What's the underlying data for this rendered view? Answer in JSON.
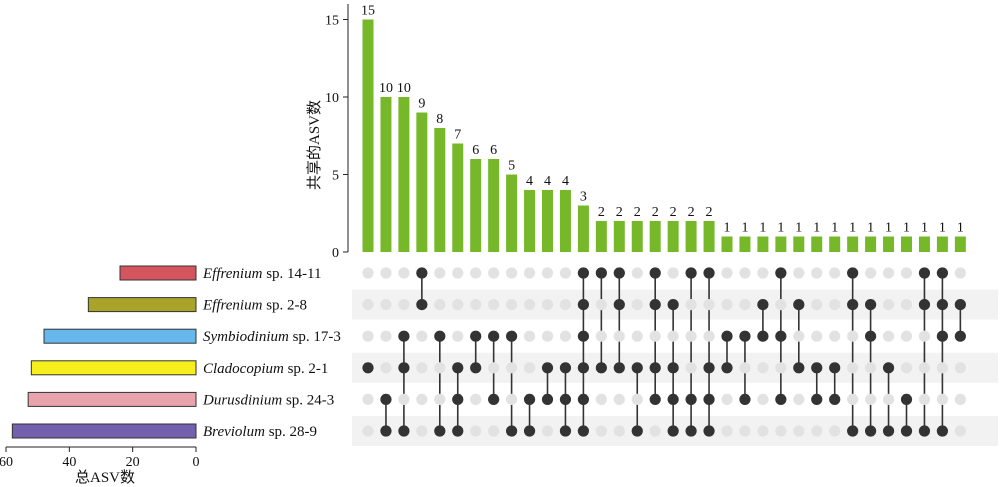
{
  "chart_data": {
    "type": "bar",
    "ylabel": "共享的ASV数",
    "ylim": [
      0,
      16
    ],
    "yticks": [
      0,
      5,
      10,
      15
    ],
    "values": [
      15,
      10,
      10,
      9,
      8,
      7,
      6,
      6,
      5,
      4,
      4,
      4,
      3,
      2,
      2,
      2,
      2,
      2,
      2,
      2,
      1,
      1,
      1,
      1,
      1,
      1,
      1,
      1,
      1,
      1,
      1,
      1,
      1,
      1
    ],
    "sets": [
      {
        "genus": "Effrenium",
        "suffix": " sp. 14-11",
        "total": 24,
        "color": "#d4555e"
      },
      {
        "genus": "Effrenium",
        "suffix": " sp. 2-8",
        "total": 34,
        "color": "#a9a32a"
      },
      {
        "genus": "Symbiodinium",
        "suffix": " sp. 17-3",
        "total": 48,
        "color": "#66b8ec"
      },
      {
        "genus": "Cladocopium",
        "suffix": " sp. 2-1",
        "total": 52,
        "color": "#f7ef1c"
      },
      {
        "genus": "Durusdinium",
        "suffix": " sp. 24-3",
        "total": 53,
        "color": "#e9a3ad"
      },
      {
        "genus": "Breviolum",
        "suffix": " sp. 28-9",
        "total": 58,
        "color": "#7361ad"
      }
    ],
    "intersections": [
      [
        3
      ],
      [
        4,
        5
      ],
      [
        2,
        3,
        5
      ],
      [
        0,
        1
      ],
      [
        2,
        5
      ],
      [
        3,
        4,
        5
      ],
      [
        2,
        3
      ],
      [
        2,
        4
      ],
      [
        2,
        5
      ],
      [
        4,
        5
      ],
      [
        3,
        4
      ],
      [
        3,
        4,
        5
      ],
      [
        0,
        1,
        2,
        3,
        4,
        5
      ],
      [
        0,
        3
      ],
      [
        0,
        1,
        3
      ],
      [
        3,
        5
      ],
      [
        0,
        1,
        3,
        4
      ],
      [
        1,
        3,
        4,
        5
      ],
      [
        0,
        4,
        5
      ],
      [
        0,
        3,
        4,
        5
      ],
      [
        2,
        3
      ],
      [
        2,
        4
      ],
      [
        1,
        2
      ],
      [
        0,
        2,
        4
      ],
      [
        1,
        3
      ],
      [
        3,
        4
      ],
      [
        3,
        4
      ],
      [
        0,
        1,
        5
      ],
      [
        1,
        2,
        5
      ],
      [
        3,
        5
      ],
      [
        4,
        5
      ],
      [
        0,
        1,
        5
      ],
      [
        0,
        1,
        2,
        5
      ],
      [
        1,
        2
      ]
    ],
    "set_axis": {
      "label": "总ASV数",
      "xlim": [
        60,
        0
      ],
      "xticks": [
        60,
        40,
        20,
        0
      ]
    }
  },
  "colors": {
    "bar": "#76b82a",
    "dot_on": "#333333",
    "dot_off": "#e2e2e2",
    "stripe": "#f2f2f2"
  }
}
